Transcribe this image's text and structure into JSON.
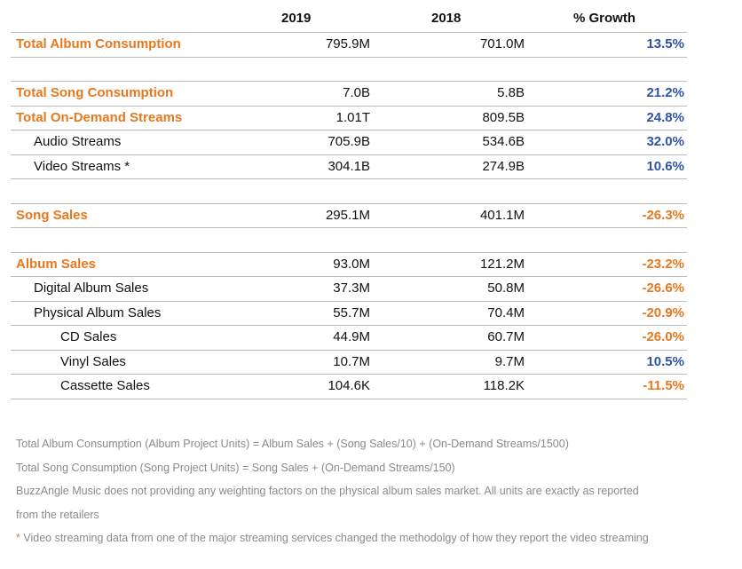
{
  "header": {
    "col_2019": "2019",
    "col_2018": "2018",
    "col_growth": "% Growth"
  },
  "rows": [
    {
      "label": "Total Album Consumption",
      "v2019": "795.9M",
      "v2018": "701.0M",
      "growth": "13.5%",
      "heading": true,
      "level": 0,
      "growth_sign": "pos"
    },
    {
      "spacer": true
    },
    {
      "label": "Total Song Consumption",
      "v2019": "7.0B",
      "v2018": "5.8B",
      "growth": "21.2%",
      "heading": true,
      "level": 0,
      "growth_sign": "pos"
    },
    {
      "label": "Total On-Demand Streams",
      "v2019": "1.01T",
      "v2018": "809.5B",
      "growth": "24.8%",
      "heading": true,
      "level": 0,
      "growth_sign": "pos"
    },
    {
      "label": "Audio Streams",
      "v2019": "705.9B",
      "v2018": "534.6B",
      "growth": "32.0%",
      "heading": false,
      "level": 1,
      "growth_sign": "pos"
    },
    {
      "label": "Video Streams *",
      "v2019": "304.1B",
      "v2018": "274.9B",
      "growth": "10.6%",
      "heading": false,
      "level": 1,
      "growth_sign": "pos"
    },
    {
      "spacer": true
    },
    {
      "label": "Song Sales",
      "v2019": "295.1M",
      "v2018": "401.1M",
      "growth": "-26.3%",
      "heading": true,
      "level": 0,
      "growth_sign": "neg"
    },
    {
      "spacer": true
    },
    {
      "label": "Album Sales",
      "v2019": "93.0M",
      "v2018": "121.2M",
      "growth": "-23.2%",
      "heading": true,
      "level": 0,
      "growth_sign": "neg"
    },
    {
      "label": "Digital Album Sales",
      "v2019": "37.3M",
      "v2018": "50.8M",
      "growth": "-26.6%",
      "heading": false,
      "level": 1,
      "growth_sign": "neg"
    },
    {
      "label": "Physical Album Sales",
      "v2019": "55.7M",
      "v2018": "70.4M",
      "growth": "-20.9%",
      "heading": false,
      "level": 1,
      "growth_sign": "neg"
    },
    {
      "label": "CD Sales",
      "v2019": "44.9M",
      "v2018": "60.7M",
      "growth": "-26.0%",
      "heading": false,
      "level": 2,
      "growth_sign": "neg"
    },
    {
      "label": "Vinyl Sales",
      "v2019": "10.7M",
      "v2018": "9.7M",
      "growth": "10.5%",
      "heading": false,
      "level": 2,
      "growth_sign": "pos"
    },
    {
      "label": "Cassette Sales",
      "v2019": "104.6K",
      "v2018": "118.2K",
      "growth": "-11.5%",
      "heading": false,
      "level": 2,
      "growth_sign": "neg"
    }
  ],
  "notes": {
    "line1": "Total Album Consumption (Album Project Units) = Album Sales + (Song Sales/10) + (On-Demand Streams/1500)",
    "line2": "Total Song Consumption (Song Project Units) = Song Sales + (On-Demand Streams/150)",
    "line3": "BuzzAngle Music does not providing any weighting factors on the physical album sales market. All units are exactly as reported",
    "line4": "from the retailers",
    "line5_star": "*",
    "line5": " Video streaming data from one of the major streaming services changed the methodolgy of how they report the video streaming"
  },
  "colors": {
    "heading_orange": "#e8781e",
    "positive_blue": "#2f55a4",
    "negative_orange": "#e8781e",
    "note_gray": "#8a8a8a"
  }
}
